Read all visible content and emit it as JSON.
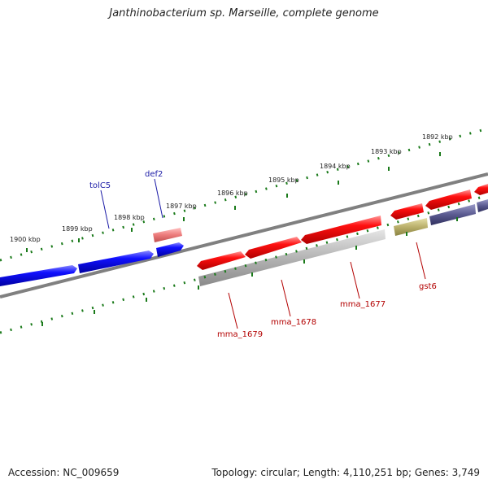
{
  "title": "Janthinobacterium sp. Marseille, complete genome",
  "accession": "Accession: NC_009659",
  "summary": "Topology: circular; Length: 4,110,251 bp; Genes: 3,749",
  "kbp_labels": [
    "1900 kbp",
    "1899 kbp",
    "1898 kbp",
    "1897 kbp",
    "1896 kbp",
    "1895 kbp",
    "1894 kbp",
    "1893 kbp",
    "1892 kbp"
  ],
  "genes": {
    "tolC5": "tolC5",
    "def2": "def2",
    "mma_1679": "mma_1679",
    "mma_1678": "mma_1678",
    "mma_1677": "mma_1677",
    "gst6": "gst6"
  },
  "colors": {
    "cds_forward": "#e00000",
    "cds_blue": "#0000e0",
    "cds_pink": "#e88080",
    "cds_grey": "#aaaaaa",
    "cds_olive": "#b8b070",
    "cds_navy": "#50508a",
    "ruler": "#1a7a1a",
    "backbone": "#808080"
  }
}
